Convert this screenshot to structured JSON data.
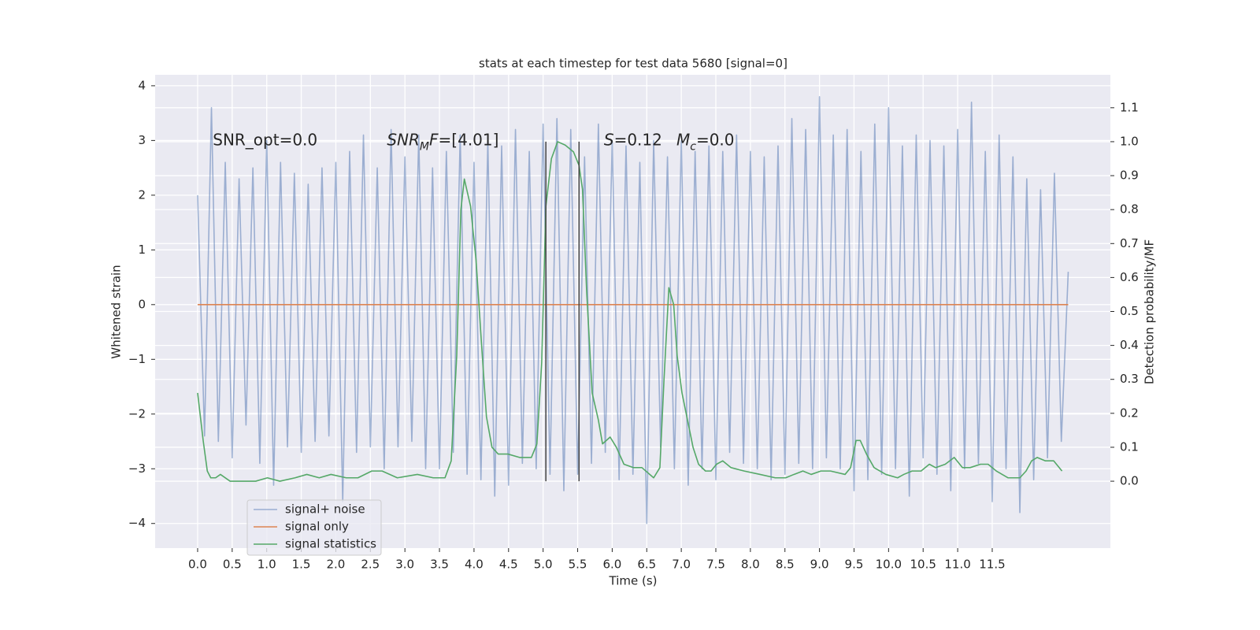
{
  "chart_data": {
    "type": "line",
    "title": "stats at each timestep for test data 5680 [signal=0]",
    "xlabel": "Time (s)",
    "ylabel": "Whitened strain",
    "y2label": "Detection probability/MF",
    "xlim": [
      -0.615,
      13.21
    ],
    "ylim": [
      -4.45,
      4.2
    ],
    "y2lim": [
      -0.197,
      1.197
    ],
    "xticks": [
      {
        "value": 0,
        "label": "0.0"
      },
      0.5,
      {
        "value": 1,
        "label": "1.0"
      },
      1.5,
      {
        "value": 2,
        "label": "2.0"
      },
      2.5,
      {
        "value": 3,
        "label": "3.0"
      },
      3.5,
      {
        "value": 4,
        "label": "4.0"
      },
      4.5,
      {
        "value": 5,
        "label": "5.0"
      },
      5.5,
      {
        "value": 6,
        "label": "6.0"
      },
      6.5,
      {
        "value": 7,
        "label": "7.0"
      },
      7.5,
      {
        "value": 8,
        "label": "8.0"
      },
      8.5,
      {
        "value": 9,
        "label": "9.0"
      },
      9.5,
      {
        "value": 10,
        "label": "10.0"
      },
      10.5,
      {
        "value": 11,
        "label": "11.0"
      },
      11.5
    ],
    "yticks": [
      {
        "value": -4,
        "label": "−4"
      },
      {
        "value": -3,
        "label": "−3"
      },
      {
        "value": -2,
        "label": "−2"
      },
      {
        "value": -1,
        "label": "−1"
      },
      0,
      1,
      2,
      3,
      4
    ],
    "y2ticks": [
      {
        "value": 0,
        "label": "0.0"
      },
      0.1,
      0.2,
      0.3,
      0.4,
      0.5,
      0.6,
      0.7,
      0.8,
      0.9,
      {
        "value": 1,
        "label": "1.0"
      },
      1.1
    ],
    "grid": true,
    "legend": "lower left",
    "series": [
      {
        "name": "signal+ noise",
        "color": "#4c72b0",
        "alpha": 0.5,
        "x": [
          0,
          0.1,
          0.2,
          0.3,
          0.4,
          0.5,
          0.6,
          0.7,
          0.8,
          0.9,
          1,
          1.1,
          1.2,
          1.3,
          1.4,
          1.5,
          1.6,
          1.7,
          1.8,
          1.9,
          2,
          2.1,
          2.2,
          2.3,
          2.4,
          2.5,
          2.6,
          2.7,
          2.8,
          2.9,
          3,
          3.1,
          3.2,
          3.3,
          3.4,
          3.5,
          3.6,
          3.7,
          3.8,
          3.9,
          4,
          4.1,
          4.2,
          4.3,
          4.4,
          4.5,
          4.6,
          4.7,
          4.8,
          4.9,
          5,
          5.1,
          5.2,
          5.3,
          5.4,
          5.5,
          5.6,
          5.7,
          5.8,
          5.9,
          6,
          6.1,
          6.2,
          6.3,
          6.4,
          6.5,
          6.6,
          6.7,
          6.8,
          6.9,
          7,
          7.1,
          7.2,
          7.3,
          7.4,
          7.5,
          7.6,
          7.7,
          7.8,
          7.9,
          8,
          8.1,
          8.2,
          8.3,
          8.4,
          8.5,
          8.6,
          8.7,
          8.8,
          8.9,
          9,
          9.1,
          9.2,
          9.3,
          9.4,
          9.5,
          9.6,
          9.7,
          9.8,
          9.9,
          10,
          10.1,
          10.2,
          10.3,
          10.4,
          10.5,
          10.6,
          10.7,
          10.8,
          10.9,
          11,
          11.1,
          11.2,
          11.3,
          11.4,
          11.5,
          11.6,
          11.7,
          11.8,
          11.9,
          12,
          12.1,
          12.2,
          12.3,
          12.4,
          12.5,
          12.6
        ],
        "values": [
          2.0,
          -2.4,
          3.6,
          -2.5,
          2.6,
          -2.8,
          2.3,
          -2.2,
          2.5,
          -2.9,
          3.0,
          -3.3,
          2.6,
          -2.6,
          2.4,
          -2.7,
          2.2,
          -2.5,
          2.5,
          -2.4,
          2.6,
          -3.6,
          2.8,
          -2.7,
          3.1,
          -2.6,
          2.5,
          -3.0,
          3.2,
          -2.6,
          2.7,
          -2.5,
          3.1,
          -3.0,
          2.5,
          -3.0,
          2.8,
          -2.7,
          3.1,
          -3.1,
          2.6,
          -3.2,
          3.0,
          -3.5,
          2.9,
          -3.3,
          3.2,
          -2.9,
          2.8,
          -3.0,
          3.3,
          -3.1,
          3.4,
          -3.4,
          3.2,
          -3.1,
          2.7,
          -2.9,
          3.3,
          -2.7,
          3.0,
          -3.2,
          2.9,
          -3.1,
          2.6,
          -4.0,
          3.0,
          -2.6,
          2.7,
          -3.0,
          3.0,
          -3.3,
          2.8,
          -3.0,
          2.9,
          -3.2,
          2.8,
          -2.7,
          3.1,
          -2.9,
          2.8,
          -3.0,
          2.7,
          -3.2,
          2.9,
          -3.1,
          3.4,
          -2.9,
          3.2,
          -3.0,
          3.8,
          -2.8,
          3.1,
          -3.0,
          3.2,
          -3.4,
          2.8,
          -3.2,
          3.3,
          -3.1,
          3.6,
          -3.0,
          2.9,
          -3.5,
          3.1,
          -2.8,
          3.0,
          -3.1,
          2.9,
          -3.4,
          3.2,
          -3.0,
          3.7,
          -2.9,
          2.8,
          -3.6,
          3.1,
          -3.0,
          2.7,
          -3.8,
          2.3,
          -3.2,
          2.1,
          -2.8,
          2.4,
          -2.5,
          0.6
        ]
      },
      {
        "name": "signal only",
        "color": "#dd8452",
        "x": [
          0,
          12.6
        ],
        "values": [
          0,
          0
        ]
      },
      {
        "name": "signal statistics",
        "color": "#55a868",
        "axis": "y2",
        "x": [
          0,
          0.08,
          0.14,
          0.19,
          0.26,
          0.33,
          0.47,
          0.67,
          0.84,
          1.01,
          1.19,
          1.41,
          1.58,
          1.76,
          1.93,
          2.15,
          2.32,
          2.52,
          2.67,
          2.89,
          3.18,
          3.41,
          3.58,
          3.67,
          3.75,
          3.81,
          3.86,
          3.95,
          4.03,
          4.11,
          4.18,
          4.26,
          4.35,
          4.49,
          4.66,
          4.83,
          4.91,
          4.98,
          5.04,
          5.12,
          5.21,
          5.32,
          5.44,
          5.52,
          5.57,
          5.63,
          5.71,
          5.8,
          5.86,
          5.97,
          6.06,
          6.17,
          6.31,
          6.43,
          6.6,
          6.69,
          6.75,
          6.82,
          6.89,
          6.94,
          7.01,
          7.09,
          7.17,
          7.25,
          7.35,
          7.43,
          7.51,
          7.6,
          7.72,
          7.91,
          8.14,
          8.36,
          8.51,
          8.63,
          8.76,
          8.88,
          9.02,
          9.16,
          9.37,
          9.45,
          9.53,
          9.59,
          9.68,
          9.79,
          9.96,
          10.13,
          10.22,
          10.34,
          10.47,
          10.59,
          10.68,
          10.82,
          10.95,
          11.07,
          11.18,
          11.33,
          11.44,
          11.56,
          11.73,
          11.9,
          11.99,
          12.07,
          12.15,
          12.27,
          12.39,
          12.51
        ],
        "values": [
          0.26,
          0.12,
          0.03,
          0.01,
          0.01,
          0.02,
          0.0,
          0.0,
          0.0,
          0.01,
          0.0,
          0.01,
          0.02,
          0.01,
          0.02,
          0.01,
          0.01,
          0.03,
          0.03,
          0.01,
          0.02,
          0.01,
          0.01,
          0.06,
          0.37,
          0.8,
          0.89,
          0.81,
          0.65,
          0.4,
          0.19,
          0.1,
          0.08,
          0.08,
          0.07,
          0.07,
          0.11,
          0.35,
          0.81,
          0.95,
          1.0,
          0.99,
          0.97,
          0.93,
          0.86,
          0.56,
          0.26,
          0.18,
          0.11,
          0.13,
          0.1,
          0.05,
          0.04,
          0.04,
          0.01,
          0.04,
          0.3,
          0.57,
          0.52,
          0.37,
          0.26,
          0.18,
          0.1,
          0.05,
          0.03,
          0.03,
          0.05,
          0.06,
          0.04,
          0.03,
          0.02,
          0.01,
          0.01,
          0.02,
          0.03,
          0.02,
          0.03,
          0.03,
          0.02,
          0.04,
          0.12,
          0.12,
          0.08,
          0.04,
          0.02,
          0.01,
          0.02,
          0.03,
          0.03,
          0.05,
          0.04,
          0.05,
          0.07,
          0.04,
          0.04,
          0.05,
          0.05,
          0.03,
          0.01,
          0.01,
          0.03,
          0.06,
          0.07,
          0.06,
          0.06,
          0.03
        ]
      }
    ],
    "vlines": {
      "x": [
        5.04,
        5.52
      ],
      "y2": [
        0,
        1
      ],
      "color": "#444444"
    },
    "annotations": [
      {
        "x": 0.22,
        "y": 3.0,
        "parts": [
          {
            "text": "SNR_opt=0.0"
          }
        ]
      },
      {
        "x": 2.74,
        "y": 3.0,
        "parts": [
          {
            "text": "SNR",
            "italic": true
          },
          {
            "text": "M",
            "italic": true,
            "sub": true
          },
          {
            "text": "F",
            "italic": true
          },
          {
            "text": "=[4.01]"
          }
        ]
      },
      {
        "x": 5.88,
        "y": 3.0,
        "parts": [
          {
            "text": "S",
            "italic": true
          },
          {
            "text": "=0.12"
          }
        ]
      },
      {
        "x": 6.93,
        "y": 3.0,
        "parts": [
          {
            "text": "M",
            "italic": true
          },
          {
            "text": "c",
            "italic": true,
            "sub": true
          },
          {
            "text": "=0.0"
          }
        ]
      }
    ]
  }
}
